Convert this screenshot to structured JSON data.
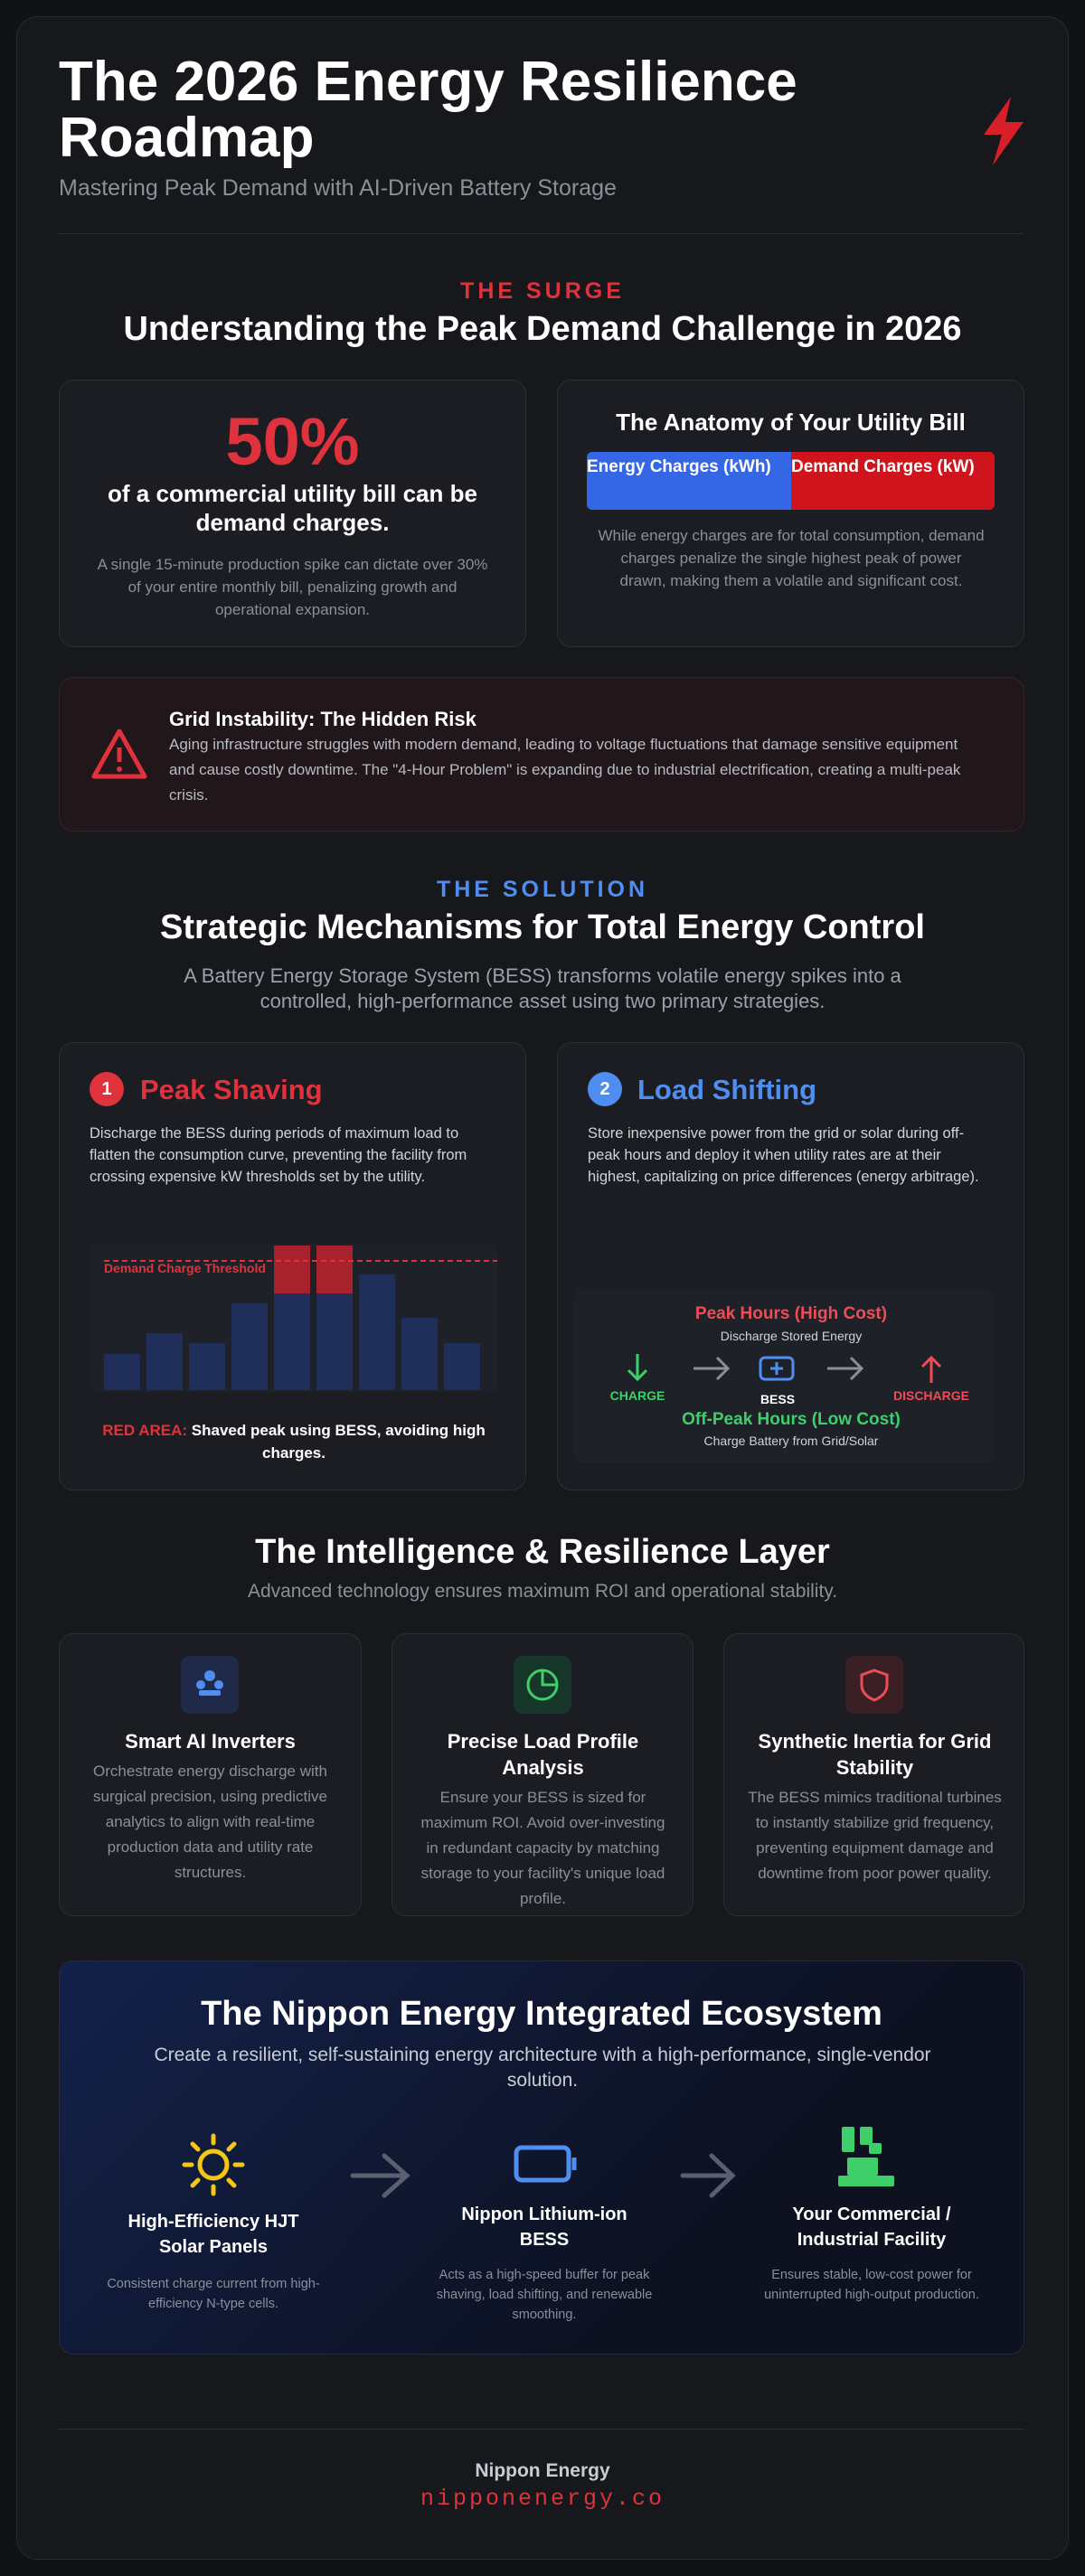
{
  "header": {
    "title": "The 2026 Energy Resilience Roadmap",
    "subtitle": "Mastering Peak Demand with AI-Driven Battery Storage"
  },
  "surge": {
    "eyebrow": "THE SURGE",
    "heading": "Understanding the Peak Demand Challenge in 2026",
    "stat": {
      "value": "50%",
      "text": "of a commercial utility bill can be demand charges.",
      "note": "A single 15-minute production spike can dictate over 30% of your entire monthly bill, penalizing growth and operational expansion."
    },
    "bill": {
      "title": "The Anatomy of Your Utility Bill",
      "segments": [
        "Energy Charges (kWh)",
        "Demand Charges (kW)"
      ],
      "note": "While energy charges are for total consumption, demand charges penalize the single highest peak of power drawn, making them a volatile and significant cost."
    },
    "alert": {
      "title": "Grid Instability: The Hidden Risk",
      "text": "Aging infrastructure struggles with modern demand, leading to voltage fluctuations that damage sensitive equipment and cause costly downtime. The \"4-Hour Problem\" is expanding due to industrial electrification, creating a multi-peak crisis."
    }
  },
  "solution": {
    "eyebrow": "THE SOLUTION",
    "heading": "Strategic Mechanisms for Total Energy Control",
    "intro": "A Battery Energy Storage System (BESS) transforms volatile energy spikes into a controlled, high-performance asset using two primary strategies.",
    "peak_shaving": {
      "number": "1",
      "title": "Peak Shaving",
      "text": "Discharge the BESS during periods of maximum load to flatten the consumption curve, preventing the facility from crossing expensive kW thresholds set by the utility.",
      "threshold": "Demand Charge Threshold",
      "caption_label": "RED AREA:",
      "caption_text": "Shaved peak using BESS, avoiding high charges."
    },
    "load_shifting": {
      "number": "2",
      "title": "Load Shifting",
      "text": "Store inexpensive power from the grid or solar during off-peak hours and deploy it when utility rates are at their highest, capitalizing on price differences (energy arbitrage).",
      "peak_title": "Peak Hours (High Cost)",
      "peak_sub": "Discharge Stored Energy",
      "charge": "CHARGE",
      "bess": "BESS",
      "discharge": "DISCHARGE",
      "offpeak_title": "Off-Peak Hours (Low Cost)",
      "offpeak_sub": "Charge Battery from Grid/Solar"
    }
  },
  "intelligence": {
    "heading": "The Intelligence & Resilience Layer",
    "subtitle": "Advanced technology ensures maximum ROI and operational stability.",
    "cards": [
      {
        "title": "Smart AI Inverters",
        "text": "Orchestrate energy discharge with surgical precision, using predictive analytics to align with real-time production data and utility rate structures."
      },
      {
        "title": "Precise Load Profile Analysis",
        "text": "Ensure your BESS is sized for maximum ROI. Avoid over-investing in redundant capacity by matching storage to your facility's unique load profile."
      },
      {
        "title": "Synthetic Inertia for Grid Stability",
        "text": "The BESS mimics traditional turbines to instantly stabilize grid frequency, preventing equipment damage and downtime from poor power quality."
      }
    ]
  },
  "ecosystem": {
    "heading": "The Nippon Energy Integrated Ecosystem",
    "subtitle": "Create a resilient, self-sustaining energy architecture with a high-performance, single-vendor solution.",
    "steps": [
      {
        "title": "High-Efficiency HJT Solar Panels",
        "text": "Consistent charge current from high-efficiency N-type cells."
      },
      {
        "title": "Nippon Lithium-ion BESS",
        "text": "Acts as a high-speed buffer for peak shaving, load shifting, and renewable smoothing."
      },
      {
        "title": "Your Commercial / Industrial Facility",
        "text": "Ensures stable, low-cost power for uninterrupted high-output production."
      }
    ]
  },
  "footer": {
    "brand": "Nippon Energy",
    "url": "nipponenergy.co"
  }
}
